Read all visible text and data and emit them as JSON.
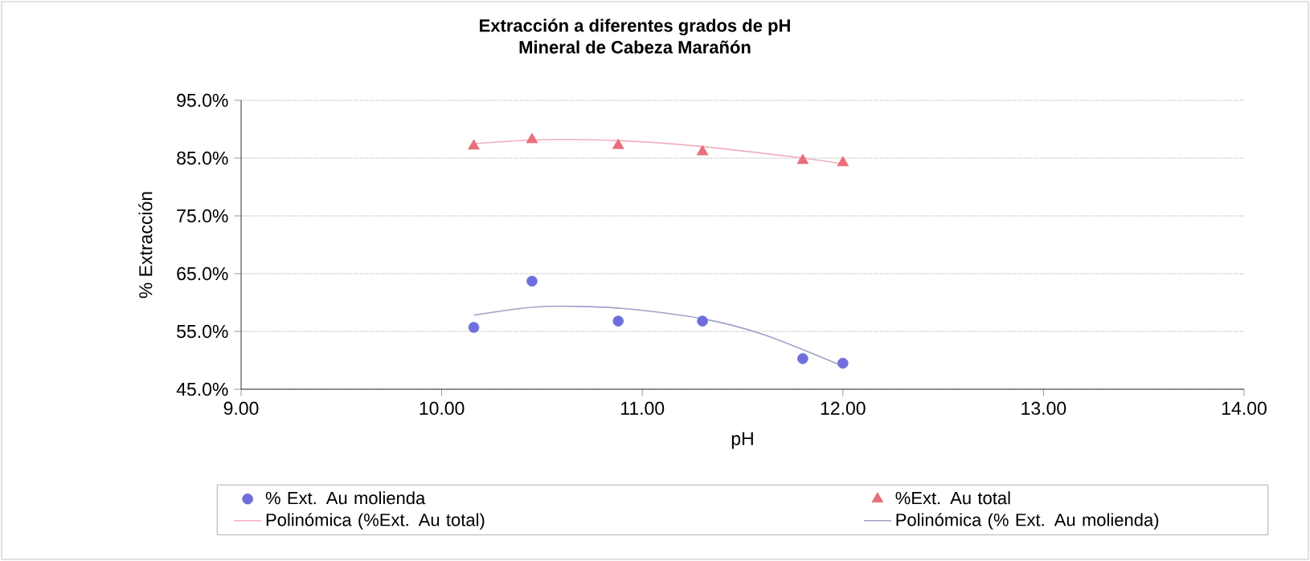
{
  "chart_data": {
    "type": "scatter",
    "title": "Extracción a diferentes grados de pH\nMineral de Cabeza Marañón",
    "xlabel": "pH",
    "ylabel": "% Extracción",
    "xlim": [
      9,
      14
    ],
    "xticks": [
      {
        "value": 9,
        "label": "9.00"
      },
      {
        "value": 10,
        "label": "10.00"
      },
      {
        "value": 11,
        "label": "11.00"
      },
      {
        "value": 12,
        "label": "12.00"
      },
      {
        "value": 13,
        "label": "13.00"
      },
      {
        "value": 14,
        "label": "14.00"
      }
    ],
    "ylim": [
      45,
      95
    ],
    "yticks": [
      {
        "value": 45,
        "label": "45.0%"
      },
      {
        "value": 55,
        "label": "55.0%"
      },
      {
        "value": 65,
        "label": "65.0%"
      },
      {
        "value": 75,
        "label": "75.0%"
      },
      {
        "value": 85,
        "label": "85.0%"
      },
      {
        "value": 95,
        "label": "95.0%"
      }
    ],
    "grid": "y",
    "legend": "bottom",
    "series": [
      {
        "name": "% Ext. Au molienda",
        "marker": "circle",
        "color": "#6f6fdc",
        "x": [
          10.16,
          10.45,
          10.88,
          11.3,
          11.8,
          12.0
        ],
        "values": [
          55.7,
          63.7,
          56.8,
          56.8,
          50.3,
          49.5
        ]
      },
      {
        "name": "%Ext. Au total",
        "marker": "triangle",
        "color": "#e8707a",
        "x": [
          10.16,
          10.45,
          10.88,
          11.3,
          11.8,
          12.0
        ],
        "values": [
          87.1,
          88.2,
          87.2,
          86.1,
          84.6,
          84.2
        ]
      },
      {
        "name": "Polinómica (%Ext. Au total)",
        "type": "line",
        "marker": "none",
        "line_style": "solid",
        "color": "#f0b0c0",
        "x": [
          10.16,
          10.5,
          10.9,
          11.3,
          11.8,
          12.0
        ],
        "values": [
          87.5,
          88.2,
          88.0,
          87.0,
          85.0,
          84.0
        ]
      },
      {
        "name": "Polinómica (% Ext. Au molienda)",
        "type": "line",
        "marker": "none",
        "line_style": "solid",
        "color": "#a0a0c8",
        "x": [
          10.16,
          10.5,
          10.9,
          11.3,
          11.6,
          12.0
        ],
        "values": [
          57.8,
          59.3,
          59.0,
          57.2,
          54.5,
          49.0
        ]
      }
    ]
  }
}
